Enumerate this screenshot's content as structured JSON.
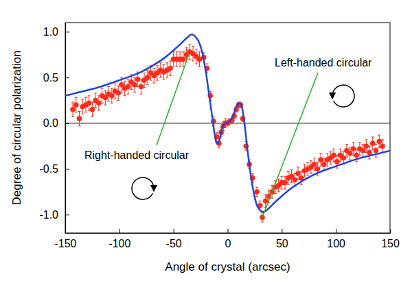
{
  "chart_data": {
    "type": "scatter",
    "x_label": "Angle of crystal (arcsec)",
    "y_label": "Degree of circular polarization",
    "xlim": [
      -150,
      150
    ],
    "xticks": [
      -150,
      -100,
      -50,
      0,
      50,
      100,
      150
    ],
    "ylim": [
      -1.2,
      1.1
    ],
    "yticks": [
      {
        "value": -1,
        "label": "-1.0"
      },
      {
        "value": -0.5,
        "label": "-0.5"
      },
      {
        "value": 0,
        "label": "0.0"
      },
      {
        "value": 0.5,
        "label": "0.5"
      },
      {
        "value": 1,
        "label": "1.0"
      }
    ],
    "grid": false,
    "reference_lines": [
      {
        "y": 0
      }
    ],
    "series": [
      {
        "type": "scatter",
        "color": "#ff2a1a",
        "marker": "circle",
        "x": [
          -143,
          -140,
          -137,
          -134,
          -131,
          -128,
          -125,
          -122,
          -119,
          -116,
          -113,
          -110,
          -107,
          -104,
          -101,
          -98,
          -95,
          -92,
          -89,
          -86,
          -83,
          -80,
          -77,
          -74,
          -71,
          -68,
          -65,
          -62,
          -59,
          -56,
          -53,
          -50,
          -47,
          -44,
          -41,
          -38,
          -35,
          -32,
          -29,
          -26,
          -22,
          -19,
          -16,
          -13,
          -10,
          -8,
          -6,
          -4,
          -2,
          0,
          2,
          4,
          6,
          8,
          10,
          12,
          14,
          17,
          20,
          23,
          27,
          30,
          32,
          35,
          38,
          41,
          44,
          47,
          50,
          53,
          56,
          59,
          62,
          65,
          68,
          71,
          74,
          77,
          80,
          83,
          86,
          89,
          92,
          95,
          98,
          101,
          104,
          107,
          110,
          113,
          116,
          119,
          122,
          125,
          128,
          131,
          134,
          137,
          140,
          143
        ],
        "values": [
          0.15,
          0.2,
          0.05,
          0.18,
          0.2,
          0.22,
          0.15,
          0.25,
          0.22,
          0.3,
          0.28,
          0.32,
          0.3,
          0.35,
          0.33,
          0.42,
          0.38,
          0.4,
          0.45,
          0.42,
          0.48,
          0.4,
          0.47,
          0.5,
          0.55,
          0.52,
          0.55,
          0.58,
          0.56,
          0.58,
          0.6,
          0.7,
          0.7,
          0.7,
          0.7,
          0.75,
          0.78,
          0.76,
          0.73,
          0.7,
          0.72,
          0.6,
          0.3,
          0.02,
          -0.15,
          -0.22,
          -0.1,
          -0.03,
          0.0,
          0.0,
          0.02,
          0.03,
          0.08,
          0.15,
          0.2,
          0.2,
          0.05,
          -0.25,
          -0.45,
          -0.6,
          -0.75,
          -0.9,
          -1.03,
          -0.85,
          -0.8,
          -0.75,
          -0.7,
          -0.68,
          -0.65,
          -0.65,
          -0.6,
          -0.58,
          -0.62,
          -0.55,
          -0.6,
          -0.52,
          -0.5,
          -0.48,
          -0.45,
          -0.5,
          -0.4,
          -0.45,
          -0.4,
          -0.38,
          -0.35,
          -0.42,
          -0.35,
          -0.38,
          -0.3,
          -0.33,
          -0.28,
          -0.35,
          -0.28,
          -0.3,
          -0.25,
          -0.32,
          -0.22,
          -0.3,
          -0.2,
          -0.25
        ],
        "errors": [
          0.08,
          0.08,
          0.08,
          0.08,
          0.08,
          0.08,
          0.08,
          0.08,
          0.08,
          0.08,
          0.08,
          0.08,
          0.08,
          0.08,
          0.08,
          0.08,
          0.08,
          0.08,
          0.08,
          0.08,
          0.08,
          0.08,
          0.08,
          0.08,
          0.08,
          0.08,
          0.08,
          0.08,
          0.08,
          0.08,
          0.08,
          0.08,
          0.08,
          0.08,
          0.08,
          0.08,
          0.08,
          0.08,
          0.08,
          0.08,
          0.05,
          0.05,
          0.05,
          0.05,
          0.05,
          0.05,
          0.05,
          0.05,
          0.05,
          0.03,
          0.03,
          0.03,
          0.03,
          0.03,
          0.03,
          0.03,
          0.03,
          0.05,
          0.05,
          0.05,
          0.05,
          0.05,
          0.05,
          0.07,
          0.07,
          0.07,
          0.07,
          0.07,
          0.07,
          0.07,
          0.07,
          0.07,
          0.07,
          0.07,
          0.07,
          0.07,
          0.07,
          0.07,
          0.07,
          0.07,
          0.07,
          0.07,
          0.07,
          0.07,
          0.07,
          0.07,
          0.07,
          0.07,
          0.07,
          0.07,
          0.07,
          0.07,
          0.07,
          0.07,
          0.07,
          0.07,
          0.07,
          0.07,
          0.07,
          0.07
        ]
      },
      {
        "type": "line",
        "color": "#1f44e0",
        "line_style": "solid",
        "x": [
          -150,
          -140,
          -120,
          -100,
          -80,
          -60,
          -45,
          -38,
          -33,
          -28,
          -24,
          -20,
          -17,
          -14,
          -12,
          -10,
          -8,
          -5,
          -2,
          0,
          2,
          5,
          8,
          11,
          13,
          15,
          17,
          20,
          24,
          28,
          33,
          38,
          45,
          60,
          80,
          100,
          120,
          140,
          150
        ],
        "values": [
          0.3,
          0.33,
          0.39,
          0.47,
          0.56,
          0.7,
          0.85,
          0.93,
          0.97,
          0.92,
          0.8,
          0.55,
          0.3,
          0.05,
          -0.12,
          -0.22,
          -0.2,
          -0.05,
          0.0,
          0.0,
          0.02,
          0.08,
          0.18,
          0.22,
          0.18,
          0.05,
          -0.15,
          -0.45,
          -0.75,
          -0.92,
          -0.97,
          -0.93,
          -0.85,
          -0.7,
          -0.56,
          -0.47,
          -0.39,
          -0.33,
          -0.3
        ]
      }
    ],
    "annotations": [
      {
        "text": "Left-handed circular"
      },
      {
        "text": "Right-handed circular"
      }
    ]
  }
}
